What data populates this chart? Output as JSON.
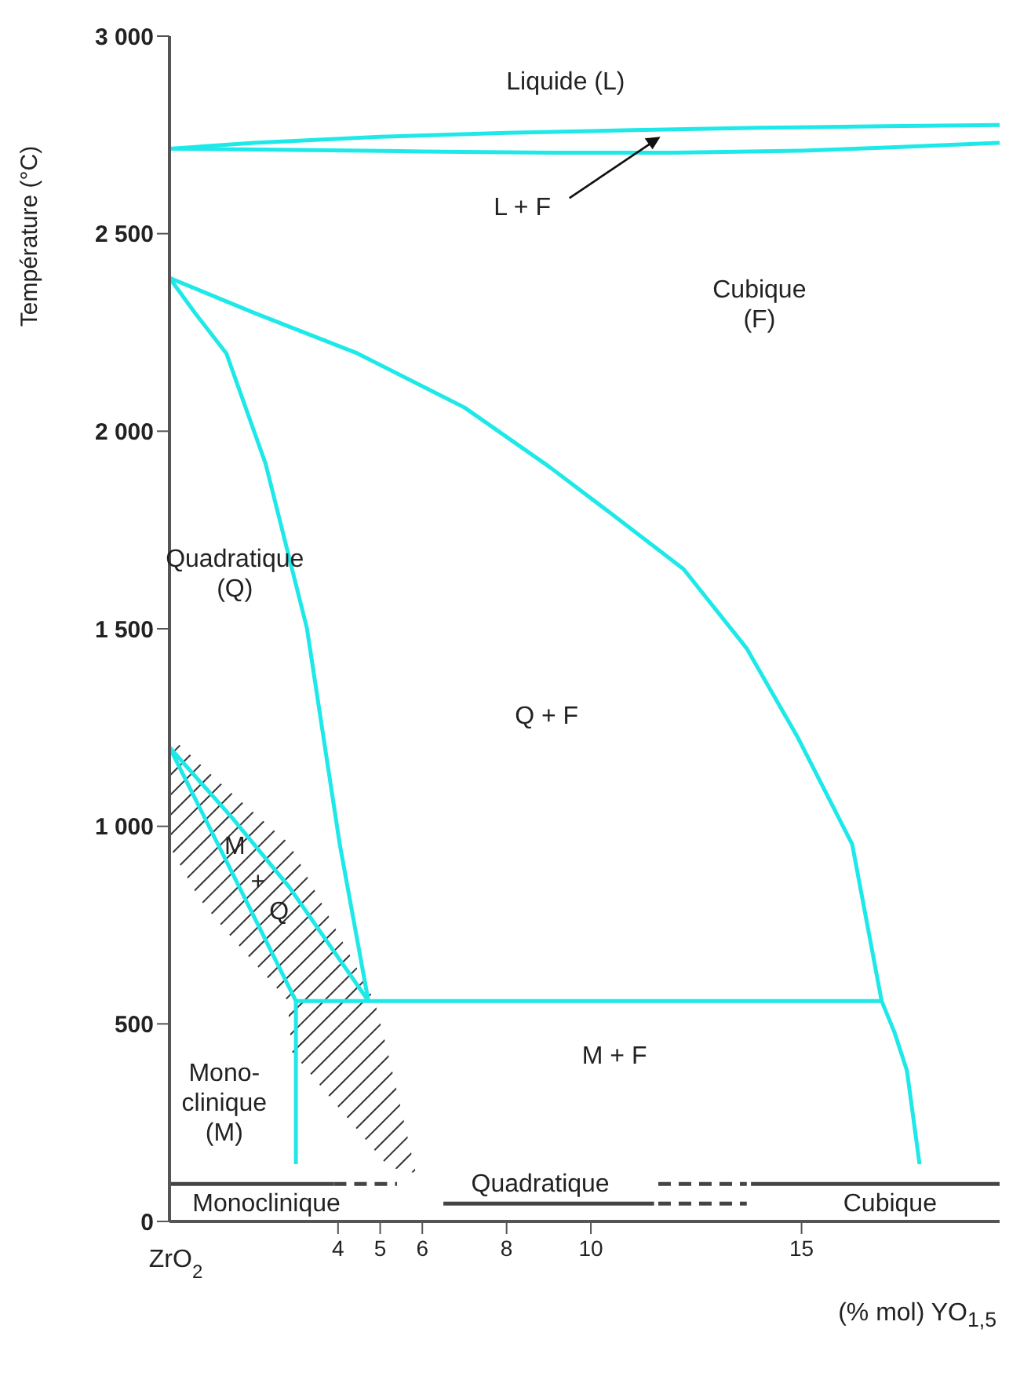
{
  "chart_data": {
    "type": "line",
    "xlabel": "(% mol) YO$_{1,5}$",
    "ylabel": "Température (°C)",
    "xlim": [
      0,
      19.7
    ],
    "ylim": [
      0,
      3000
    ],
    "xticks": [
      4,
      5,
      6,
      8,
      10,
      15
    ],
    "yticks": [
      0,
      500,
      {
        "value": 1000,
        "label": "1 000"
      },
      {
        "value": 1500,
        "label": "1 500"
      },
      {
        "value": 2000,
        "label": "2 000"
      },
      {
        "value": 2500,
        "label": "2 500"
      },
      {
        "value": 3000,
        "label": "3 000"
      }
    ],
    "marker": "none",
    "series": [
      {
        "color": "#1ee8e8",
        "x": [
          0,
          2,
          5,
          8,
          11,
          14,
          17,
          19.7
        ],
        "values": [
          2715,
          2730,
          2745,
          2755,
          2762,
          2768,
          2772,
          2775
        ]
      },
      {
        "color": "#1ee8e8",
        "x": [
          0,
          3,
          6,
          9,
          12,
          15,
          17,
          19.7
        ],
        "values": [
          2715,
          2712,
          2708,
          2705,
          2705,
          2710,
          2718,
          2730
        ]
      },
      {
        "color": "#1ee8e8",
        "x": [
          0,
          2,
          4.46,
          7,
          9,
          10.5,
          12.2,
          13.7,
          14.9,
          16.2,
          16.9,
          17.2,
          17.5,
          17.8
        ],
        "values": [
          2388,
          2300,
          2197,
          2060,
          1911,
          1790,
          1651,
          1450,
          1227,
          955,
          558,
          480,
          382,
          145
        ]
      },
      {
        "color": "#1ee8e8",
        "x": [
          0,
          0.6,
          1.35,
          2.28,
          3.26,
          4.04,
          4.72
        ],
        "values": [
          2388,
          2300,
          2197,
          1918,
          1502,
          955,
          558
        ]
      },
      {
        "color": "#1ee8e8",
        "x": [
          3,
          16.9
        ],
        "values": [
          558,
          558
        ]
      },
      {
        "color": "#1ee8e8",
        "x": [
          0,
          1.5,
          3
        ],
        "values": [
          1200,
          880,
          558
        ]
      },
      {
        "color": "#1ee8e8",
        "x": [
          0,
          1.5,
          2.85,
          4.72
        ],
        "values": [
          1200,
          1020,
          845,
          558
        ]
      },
      {
        "color": "#1ee8e8",
        "x": [
          3,
          3
        ],
        "values": [
          558,
          145
        ]
      },
      {
        "color": "#444444",
        "x": [
          0,
          3.9
        ],
        "values": [
          95,
          95
        ]
      },
      {
        "color": "#444444",
        "line_style": "dashed",
        "x": [
          3.9,
          5.4
        ],
        "values": [
          95,
          95
        ]
      },
      {
        "color": "#444444",
        "line_style": "dashed",
        "x": [
          11.6,
          13.7
        ],
        "values": [
          95,
          95
        ]
      },
      {
        "color": "#444444",
        "x": [
          13.8,
          19.7
        ],
        "values": [
          95,
          95
        ]
      },
      {
        "color": "#444444",
        "x": [
          6.5,
          11.5
        ],
        "values": [
          45,
          45
        ]
      },
      {
        "color": "#444444",
        "line_style": "dashed",
        "x": [
          11.6,
          13.7
        ],
        "values": [
          45,
          45
        ]
      }
    ],
    "annotations": [
      "ZrO$_{2}$",
      "Liquide (L)",
      {
        "text": "L + F",
        "x": 11.65,
        "y": 2745
      },
      "Cubique\n(F)",
      "Quadratique\n(Q)",
      "Q + F",
      "M",
      "+",
      "Q",
      "M + F",
      "Mono-\nclinique\n(M)",
      "Monoclinique",
      "Quadratique",
      "Cubique"
    ]
  }
}
